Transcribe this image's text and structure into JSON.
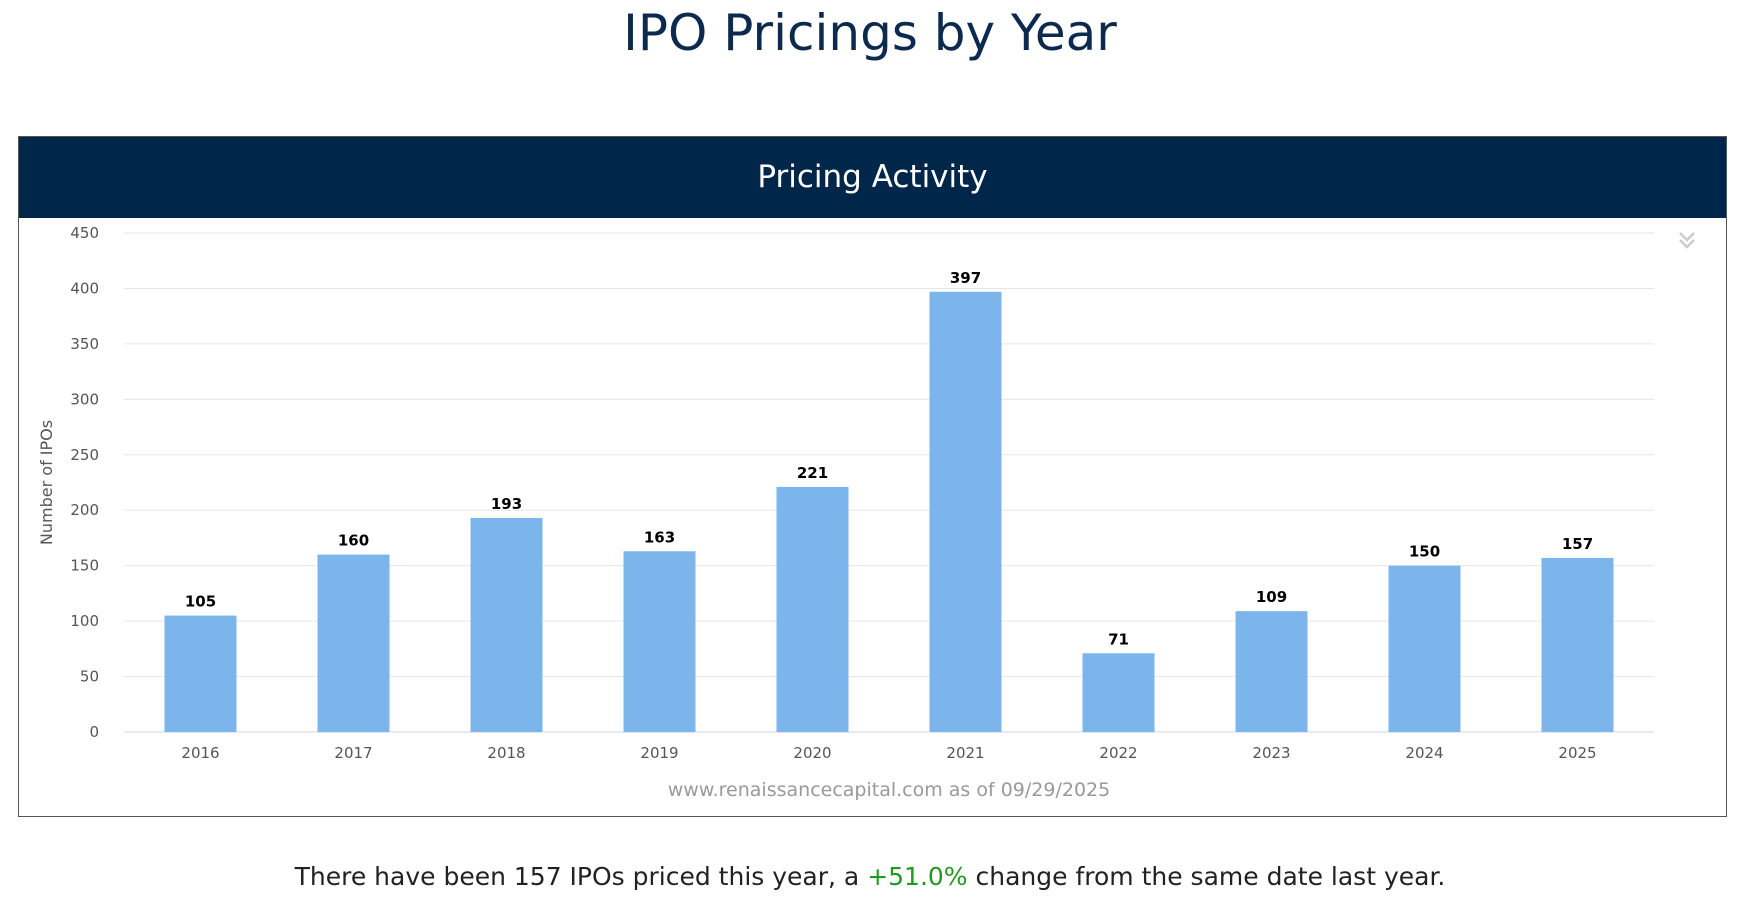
{
  "page_title": "IPO Pricings by Year",
  "panel_title": "Pricing Activity",
  "summary": {
    "prefix": "There have been 157 IPOs priced this year, a ",
    "change": "+51.0%",
    "suffix": " change from the same date last year."
  },
  "colors": {
    "bar": "#7cb5ec",
    "header": "#00264a",
    "positive": "#1f9a1f"
  },
  "chart_data": {
    "type": "bar",
    "title": "Pricing Activity",
    "categories": [
      "2016",
      "2017",
      "2018",
      "2019",
      "2020",
      "2021",
      "2022",
      "2023",
      "2024",
      "2025"
    ],
    "values": [
      105,
      160,
      193,
      163,
      221,
      397,
      71,
      109,
      150,
      157
    ],
    "xlabel": "",
    "ylabel": "Number of IPOs",
    "ylim": [
      0,
      450
    ],
    "yticks": [
      0,
      50,
      100,
      150,
      200,
      250,
      300,
      350,
      400,
      450
    ],
    "grid": true,
    "credit": "www.renaissancecapital.com as of 09/29/2025"
  }
}
